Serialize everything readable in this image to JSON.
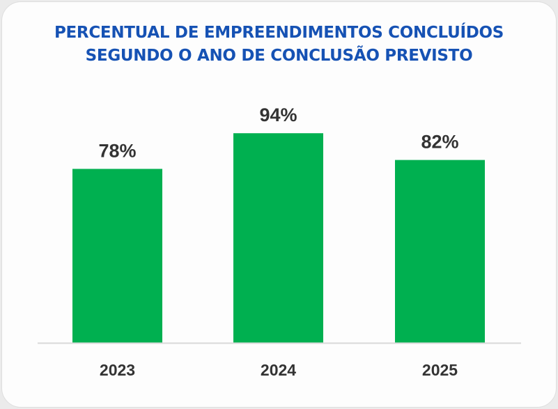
{
  "chart_data": {
    "type": "bar",
    "title": "PERCENTUAL DE EMPREENDIMENTOS CONCLUÍDOS SEGUNDO O ANO DE CONCLUSÃO PREVISTO",
    "title_lines": [
      "PERCENTUAL DE EMPREENDIMENTOS CONCLUÍDOS",
      "SEGUNDO O ANO DE CONCLUSÃO PREVISTO"
    ],
    "categories": [
      "2023",
      "2024",
      "2025"
    ],
    "values": [
      78,
      94,
      82
    ],
    "data_labels": [
      "78%",
      "94%",
      "82%"
    ],
    "xlabel": "",
    "ylabel": "",
    "ylim": [
      0,
      100
    ],
    "grid": false,
    "colors": {
      "bar": "#00b050",
      "title": "#1652b4",
      "text": "#333333",
      "axis": "#d9d9d9"
    }
  }
}
